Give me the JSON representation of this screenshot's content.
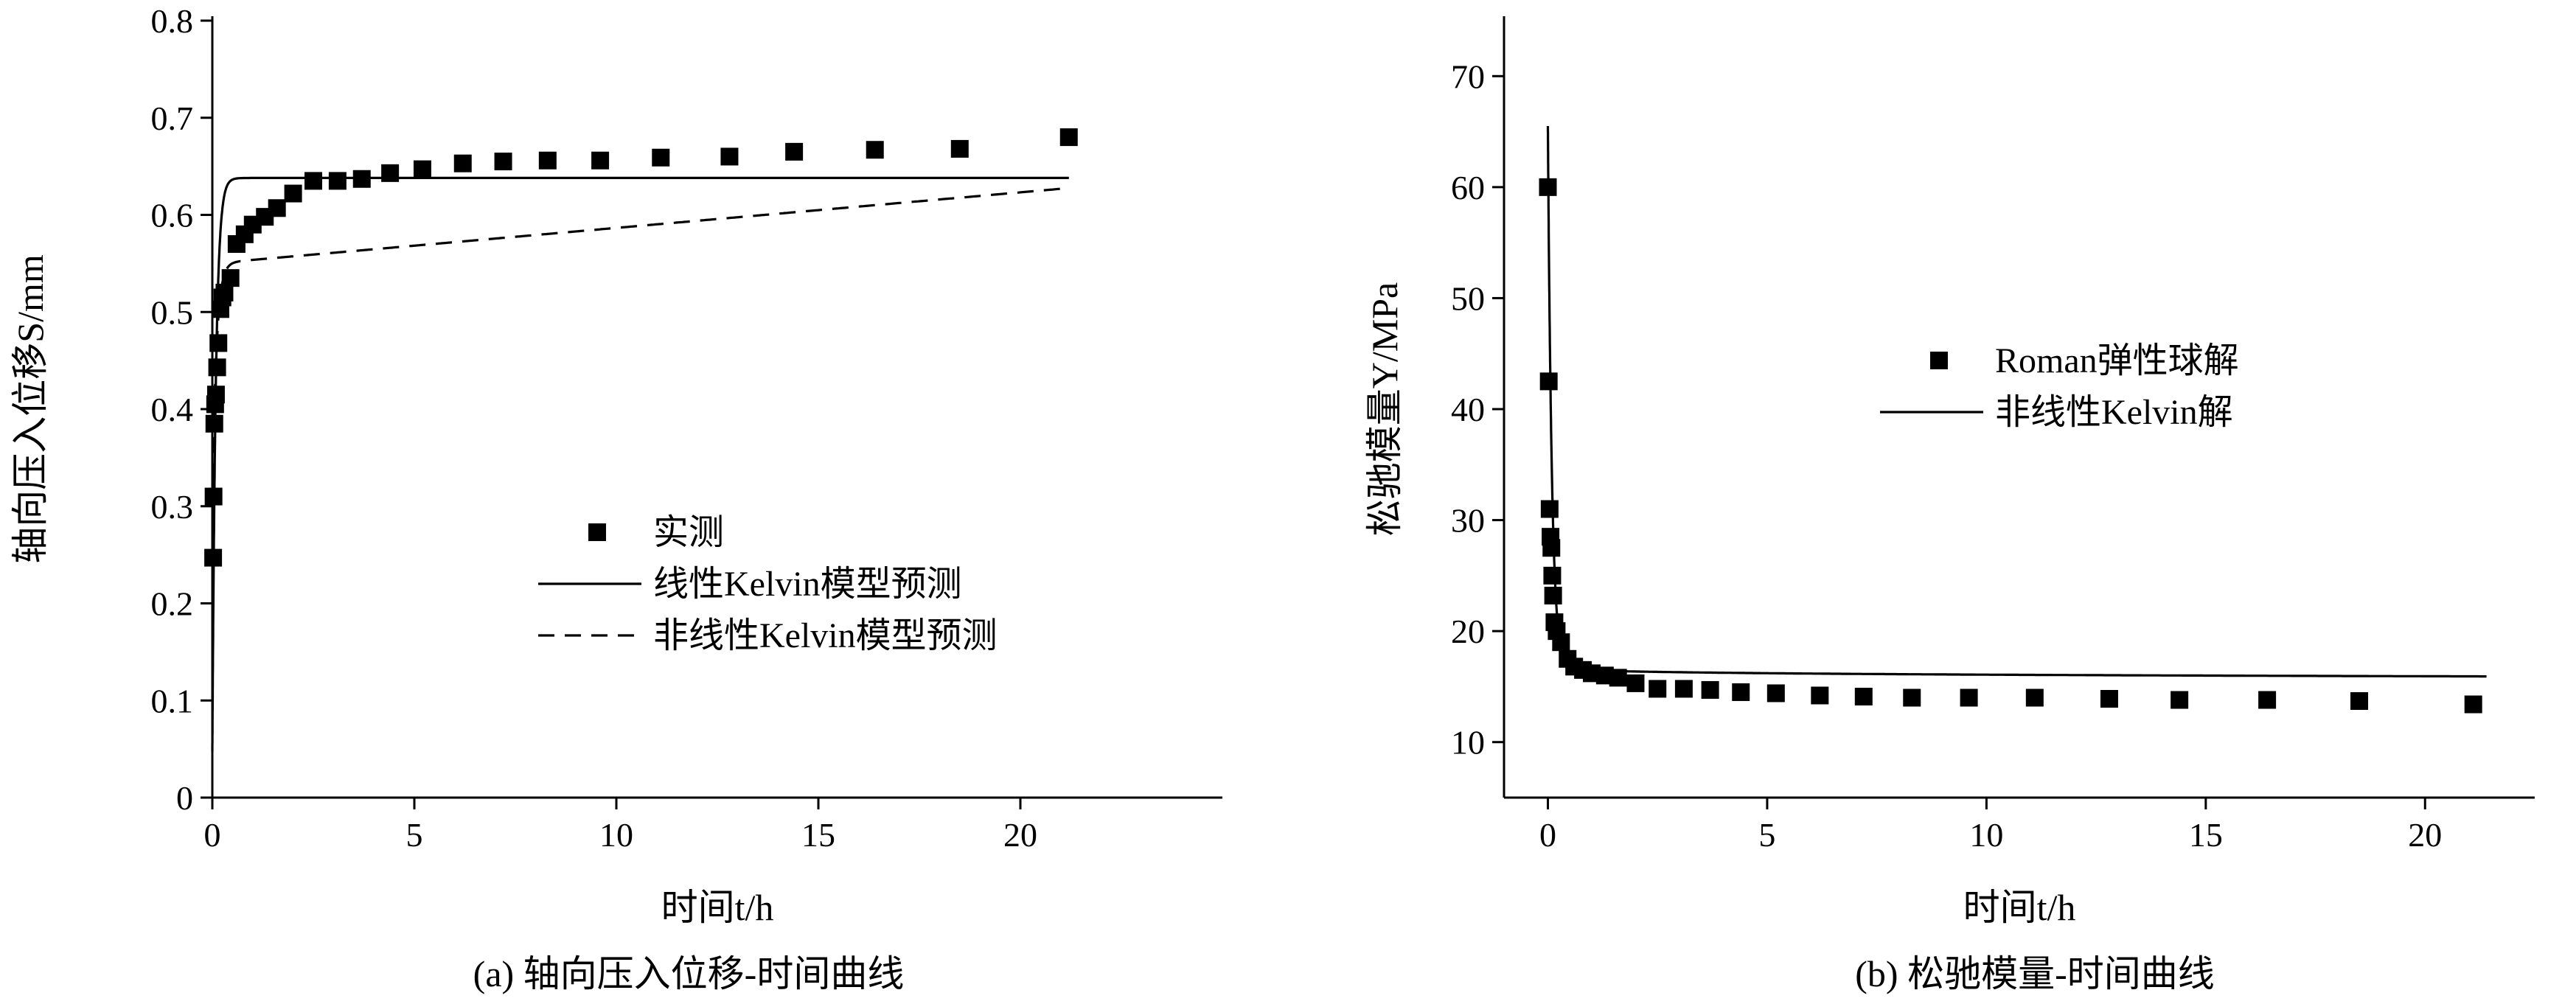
{
  "chart_data": [
    {
      "type": "scatter",
      "caption": "(a) 轴向压入位移-时间曲线",
      "xlabel": "时间t/h",
      "ylabel": "轴向压入位移S/mm",
      "xlim": [
        0,
        25
      ],
      "ylim": [
        0,
        0.8
      ],
      "xticks": [
        "0",
        "5",
        "10",
        "15",
        "20"
      ],
      "yticks": [
        "0",
        "0.1",
        "0.2",
        "0.3",
        "0.4",
        "0.5",
        "0.6",
        "0.7",
        "0.8"
      ],
      "legend_position": "center-right",
      "series": [
        {
          "name": "实测",
          "kind": "marker",
          "x": [
            0.02,
            0.03,
            0.05,
            0.07,
            0.09,
            0.12,
            0.15,
            0.2,
            0.25,
            0.3,
            0.45,
            0.6,
            0.8,
            1.0,
            1.3,
            1.6,
            2.0,
            2.5,
            3.1,
            3.7,
            4.4,
            5.2,
            6.2,
            7.2,
            8.3,
            9.6,
            11.1,
            12.8,
            14.4,
            16.4,
            18.5,
            21.2
          ],
          "y": [
            0.247,
            0.31,
            0.385,
            0.405,
            0.415,
            0.443,
            0.468,
            0.503,
            0.515,
            0.52,
            0.535,
            0.57,
            0.58,
            0.59,
            0.598,
            0.607,
            0.622,
            0.635,
            0.635,
            0.637,
            0.643,
            0.647,
            0.653,
            0.655,
            0.656,
            0.656,
            0.659,
            0.66,
            0.665,
            0.667,
            0.668,
            0.68
          ]
        },
        {
          "name": "线性Kelvin模型预测",
          "kind": "solid",
          "model": "linear",
          "s0": 0.048,
          "s1": 0.638,
          "tau": 0.085,
          "tmax": 21.2
        },
        {
          "name": "非线性Kelvin模型预测",
          "kind": "dashed",
          "model": "nonlinear",
          "s0": 0.3,
          "a": 0.25,
          "tau": 0.1,
          "b": 0.00366,
          "tmax": 21.2
        }
      ]
    },
    {
      "type": "scatter",
      "caption": "(b) 松驰模量-时间曲线",
      "xlabel": "时间t/h",
      "ylabel": "松驰模量Y/MPa",
      "xlim": [
        -1,
        22.5
      ],
      "ylim": [
        5,
        75
      ],
      "xticks": [
        "0",
        "5",
        "10",
        "15",
        "20"
      ],
      "yticks": [
        "10",
        "20",
        "30",
        "40",
        "50",
        "60",
        "70"
      ],
      "legend_position": "center-right",
      "series": [
        {
          "name": "Roman弹性球解",
          "kind": "marker",
          "x": [
            0.0,
            0.02,
            0.04,
            0.06,
            0.08,
            0.1,
            0.12,
            0.15,
            0.2,
            0.3,
            0.45,
            0.6,
            0.8,
            1.0,
            1.3,
            1.6,
            2.0,
            2.5,
            3.1,
            3.7,
            4.4,
            5.2,
            6.2,
            7.2,
            8.3,
            9.6,
            11.1,
            12.8,
            14.4,
            16.4,
            18.5,
            21.1
          ],
          "y": [
            60.0,
            42.5,
            31.0,
            28.5,
            27.5,
            25.0,
            23.2,
            20.8,
            20.0,
            19.0,
            17.5,
            16.8,
            16.5,
            16.2,
            16.0,
            15.8,
            15.3,
            14.8,
            14.8,
            14.7,
            14.5,
            14.4,
            14.2,
            14.1,
            14.0,
            14.0,
            14.0,
            13.9,
            13.8,
            13.8,
            13.7,
            13.4
          ]
        },
        {
          "name": "非线性Kelvin解",
          "kind": "solid",
          "model": "relaxation",
          "e0": 65.5,
          "einf": 16.6,
          "tau": 0.09,
          "c": 0.2187,
          "tmax": 21.4
        }
      ]
    }
  ]
}
